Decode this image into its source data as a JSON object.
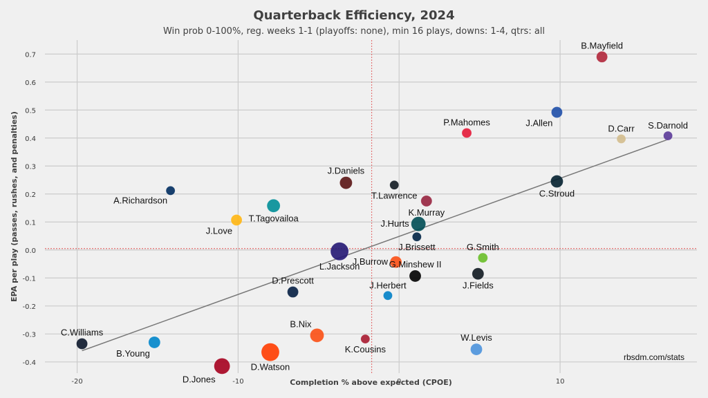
{
  "chart_data": {
    "type": "scatter",
    "title": "Quarterback Efficiency, 2024",
    "subtitle": "Win prob 0-100%, reg. weeks 1-1 (playoffs: none), min 16 plays, downs: 1-4, qtrs: all",
    "xlabel": "Completion % above expected (CPOE)",
    "ylabel": "EPA per play (passes, rushes, and penalties)",
    "xlim": [
      -22,
      18.5
    ],
    "ylim": [
      -0.44,
      0.75
    ],
    "xticks": [
      -20,
      -10,
      0,
      10
    ],
    "yticks": [
      -0.4,
      -0.3,
      -0.2,
      -0.1,
      0.0,
      0.1,
      0.2,
      0.3,
      0.4,
      0.5,
      0.6,
      0.7
    ],
    "xtick_labels": [
      "-20",
      "-10",
      "0",
      "10"
    ],
    "ytick_labels": [
      "-0.4",
      "-0.3",
      "-0.2",
      "-0.1",
      "0.0",
      "0.1",
      "0.2",
      "0.3",
      "0.4",
      "0.5",
      "0.6",
      "0.7"
    ],
    "grid": true,
    "source": "rbsdm.com/stats",
    "mean_x": -1.7,
    "mean_y": 0.005,
    "trend_line": {
      "x": [
        -19.7,
        16.7
      ],
      "y": [
        -0.36,
        0.395
      ]
    },
    "points": [
      {
        "label": "B.Mayfield",
        "x": 12.6,
        "y": 0.69,
        "size": 8,
        "color": "#b0263a",
        "label_pos": "above"
      },
      {
        "label": "J.Allen",
        "x": 9.8,
        "y": 0.492,
        "size": 8,
        "color": "#1f4fa8",
        "label_pos": "below-left"
      },
      {
        "label": "S.Darnold",
        "x": 16.7,
        "y": 0.408,
        "size": 6.5,
        "color": "#5b3a98",
        "label_pos": "above"
      },
      {
        "label": "D.Carr",
        "x": 13.8,
        "y": 0.397,
        "size": 6.5,
        "color": "#d3bc8d",
        "label_pos": "above"
      },
      {
        "label": "P.Mahomes",
        "x": 4.2,
        "y": 0.418,
        "size": 7,
        "color": "#e31837",
        "label_pos": "above"
      },
      {
        "label": "C.Stroud",
        "x": 9.8,
        "y": 0.245,
        "size": 9,
        "color": "#03202f",
        "label_pos": "below"
      },
      {
        "label": "T.Lawrence",
        "x": -0.3,
        "y": 0.232,
        "size": 6.5,
        "color": "#101820",
        "label_pos": "below"
      },
      {
        "label": "J.Daniels",
        "x": -3.3,
        "y": 0.24,
        "size": 9,
        "color": "#5a1414",
        "label_pos": "above"
      },
      {
        "label": "A.Richardson",
        "x": -14.2,
        "y": 0.212,
        "size": 6.5,
        "color": "#002c5f",
        "label_pos": "below-left"
      },
      {
        "label": "K.Murray",
        "x": 1.7,
        "y": 0.175,
        "size": 8,
        "color": "#97233f",
        "label_pos": "below"
      },
      {
        "label": "T.Tagovailoa",
        "x": -7.8,
        "y": 0.158,
        "size": 9.5,
        "color": "#008e97",
        "label_pos": "below"
      },
      {
        "label": "J.Love",
        "x": -10.1,
        "y": 0.107,
        "size": 8,
        "color": "#ffb612",
        "label_pos": "below-left"
      },
      {
        "label": "J.Hurts",
        "x": 1.2,
        "y": 0.093,
        "size": 10.5,
        "color": "#004c54",
        "label_pos": "left"
      },
      {
        "label": "J.Brissett",
        "x": 1.1,
        "y": 0.047,
        "size": 6.5,
        "color": "#002244",
        "label_pos": "below"
      },
      {
        "label": "L.Jackson",
        "x": -3.7,
        "y": -0.005,
        "size": 13,
        "color": "#241773",
        "label_pos": "below"
      },
      {
        "label": "G.Smith",
        "x": 5.2,
        "y": -0.028,
        "size": 7,
        "color": "#69be28",
        "label_pos": "above"
      },
      {
        "label": "J.Burrow",
        "x": -0.2,
        "y": -0.043,
        "size": 8.5,
        "color": "#fb4f14",
        "label_pos": "left"
      },
      {
        "label": "G.Minshew II",
        "x": 1.0,
        "y": -0.093,
        "size": 8.5,
        "color": "#000000",
        "label_pos": "above"
      },
      {
        "label": "J.Fields",
        "x": 4.9,
        "y": -0.085,
        "size": 8.5,
        "color": "#101820",
        "label_pos": "below"
      },
      {
        "label": "D.Prescott",
        "x": -6.6,
        "y": -0.15,
        "size": 8,
        "color": "#041e42",
        "label_pos": "above"
      },
      {
        "label": "J.Herbert",
        "x": -0.7,
        "y": -0.163,
        "size": 6.5,
        "color": "#0080c6",
        "label_pos": "above"
      },
      {
        "label": "C.Williams",
        "x": -19.7,
        "y": -0.335,
        "size": 8,
        "color": "#0b162a",
        "label_pos": "above"
      },
      {
        "label": "B.Young",
        "x": -15.2,
        "y": -0.33,
        "size": 8.5,
        "color": "#0085ca",
        "label_pos": "below-left"
      },
      {
        "label": "B.Nix",
        "x": -5.1,
        "y": -0.305,
        "size": 10,
        "color": "#fb4f14",
        "label_pos": "above-left"
      },
      {
        "label": "K.Cousins",
        "x": -2.1,
        "y": -0.318,
        "size": 6.5,
        "color": "#a71930",
        "label_pos": "below"
      },
      {
        "label": "D.Watson",
        "x": -8.0,
        "y": -0.365,
        "size": 13,
        "color": "#ff3c00",
        "label_pos": "below"
      },
      {
        "label": "D.Jones",
        "x": -11.0,
        "y": -0.415,
        "size": 11.5,
        "color": "#a5001e",
        "label_pos": "below-left"
      },
      {
        "label": "W.Levis",
        "x": 4.8,
        "y": -0.355,
        "size": 8.5,
        "color": "#4b92db",
        "label_pos": "above"
      }
    ]
  }
}
